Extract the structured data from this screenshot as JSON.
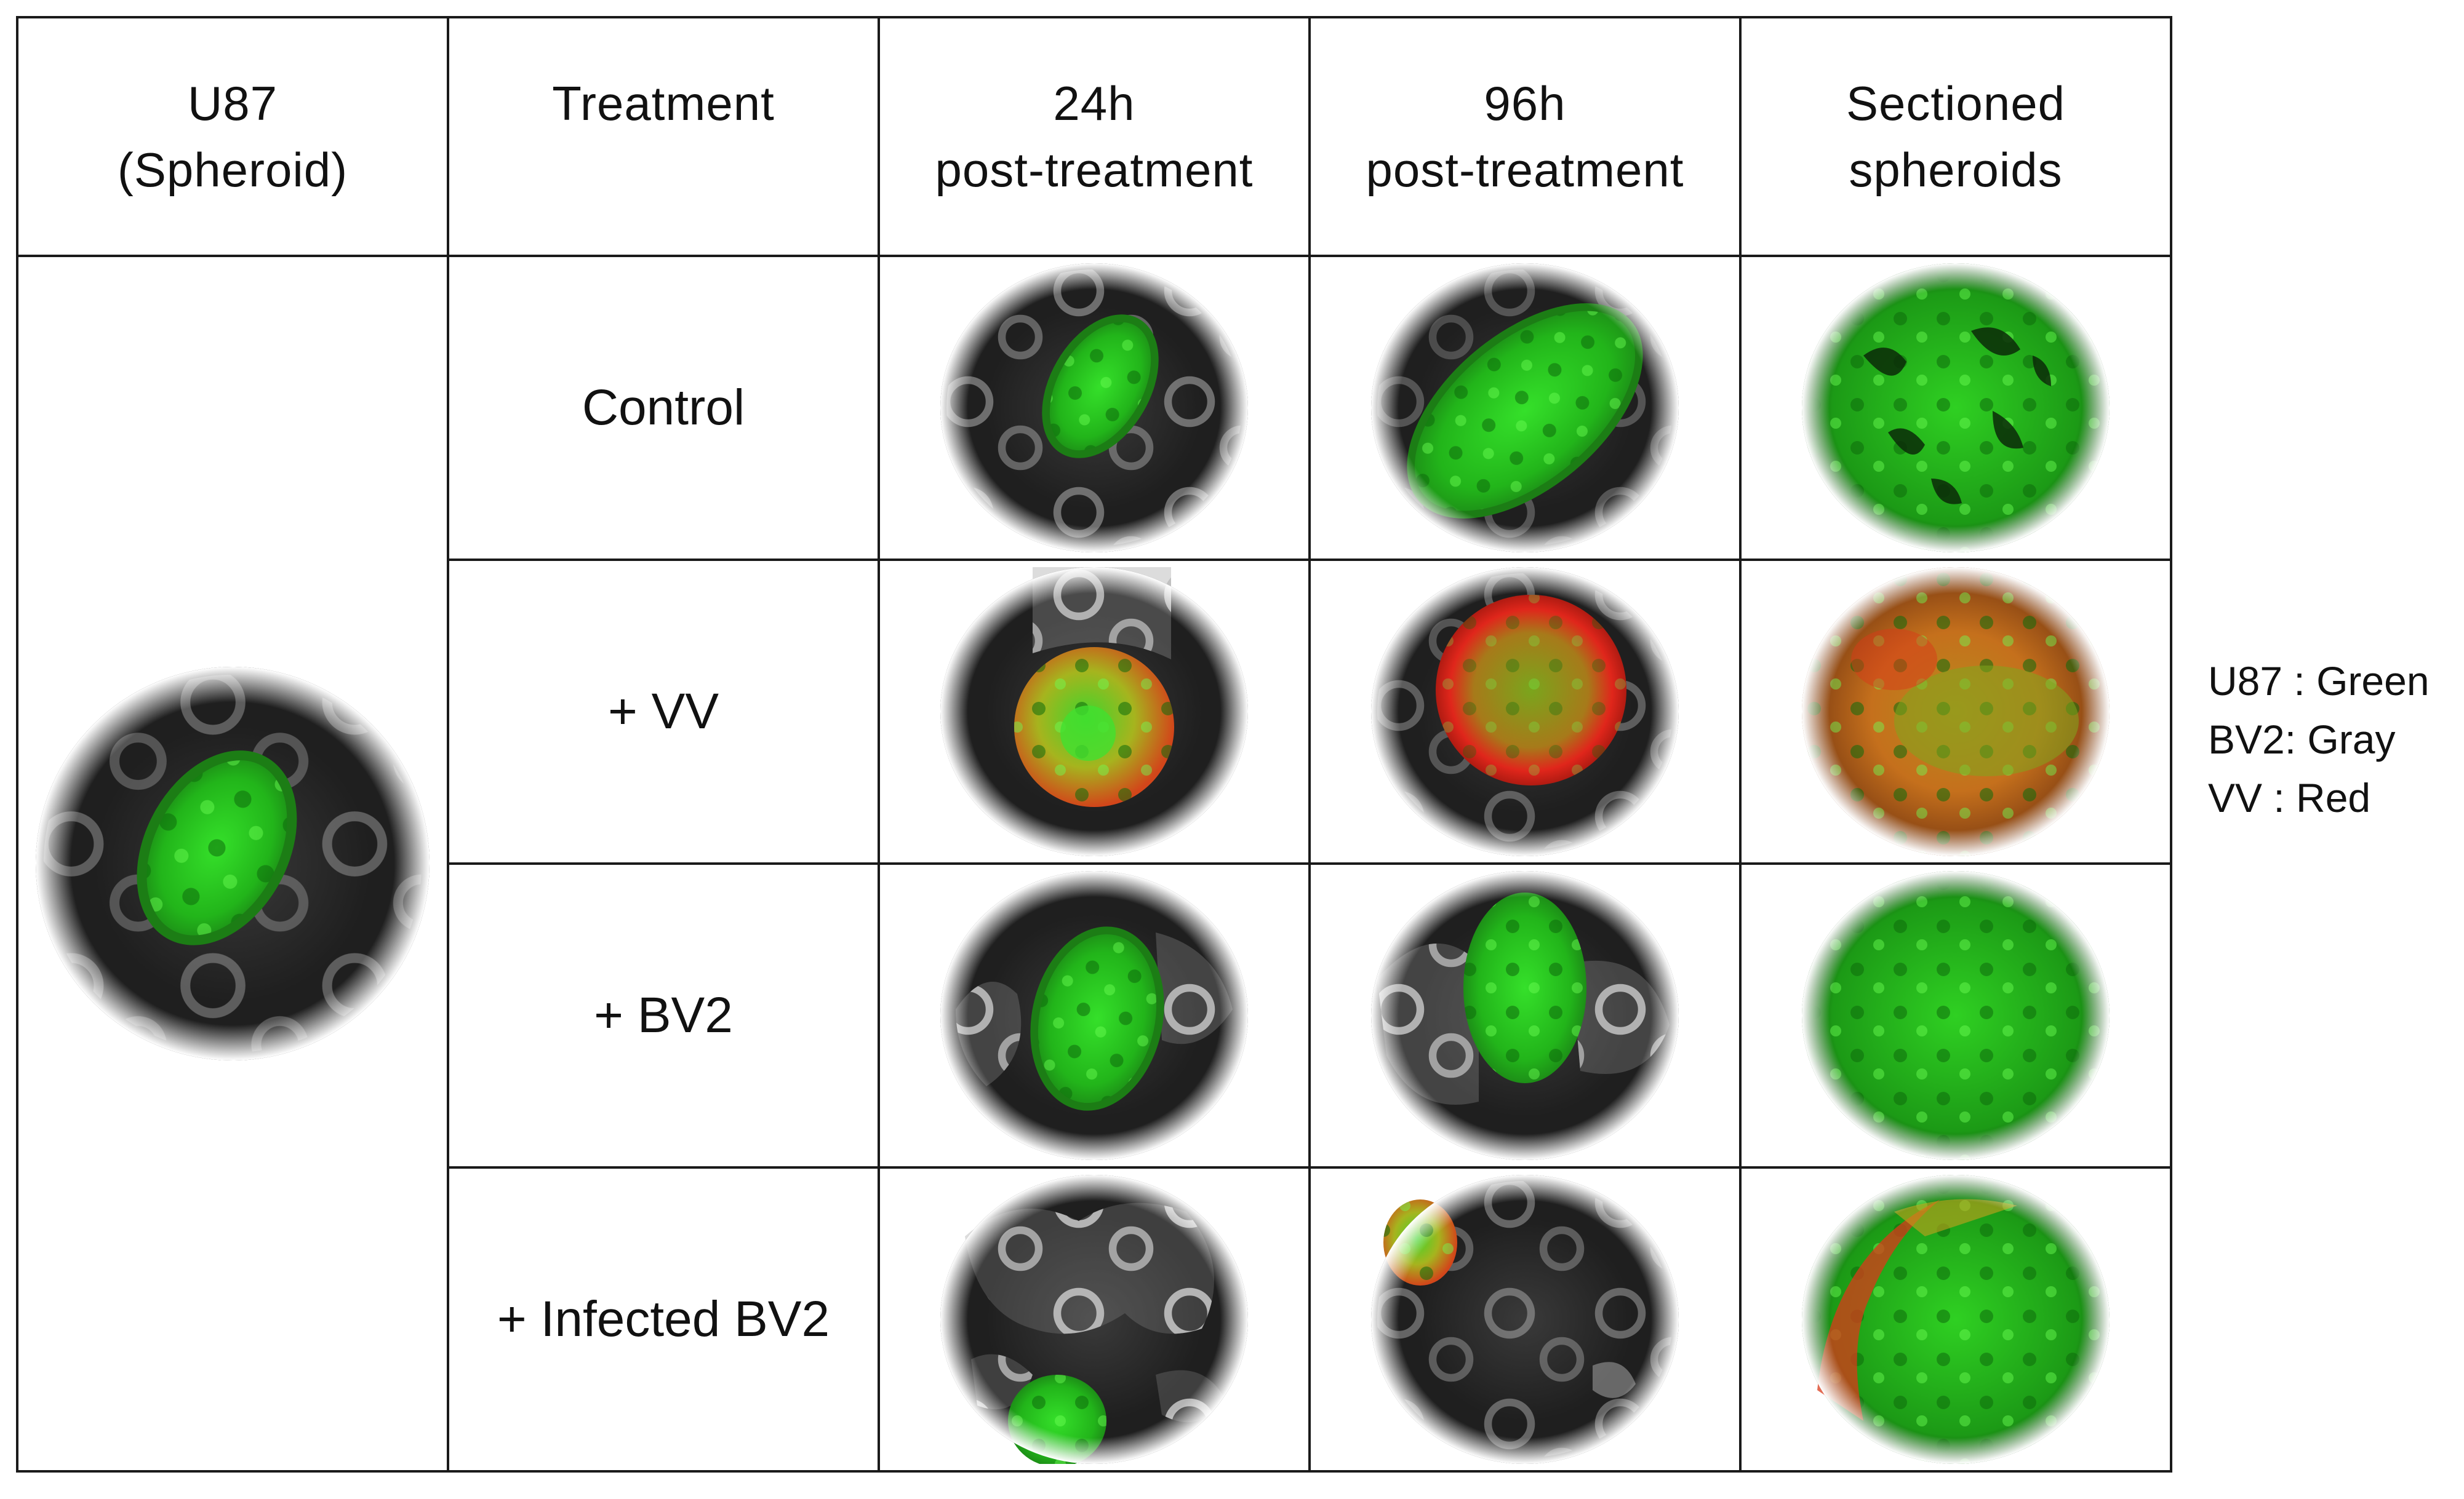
{
  "headers": {
    "u87": [
      "U87",
      "(Spheroid)"
    ],
    "treatment": [
      "Treatment"
    ],
    "t24": [
      "24h",
      "post-treatment"
    ],
    "t96": [
      "96h",
      "post-treatment"
    ],
    "sectioned": [
      "Sectioned",
      "spheroids"
    ]
  },
  "rows": [
    {
      "label": "Control"
    },
    {
      "label": "+ VV"
    },
    {
      "label": "+ BV2"
    },
    {
      "label": "+ Infected BV2"
    }
  ],
  "legend": [
    "U87 : Green",
    "BV2: Gray",
    "VV : Red"
  ],
  "colors": {
    "u87": "#2ecc1f",
    "bv2": "#bdbdbd",
    "vv": "#e0261b",
    "background": "#262626"
  }
}
